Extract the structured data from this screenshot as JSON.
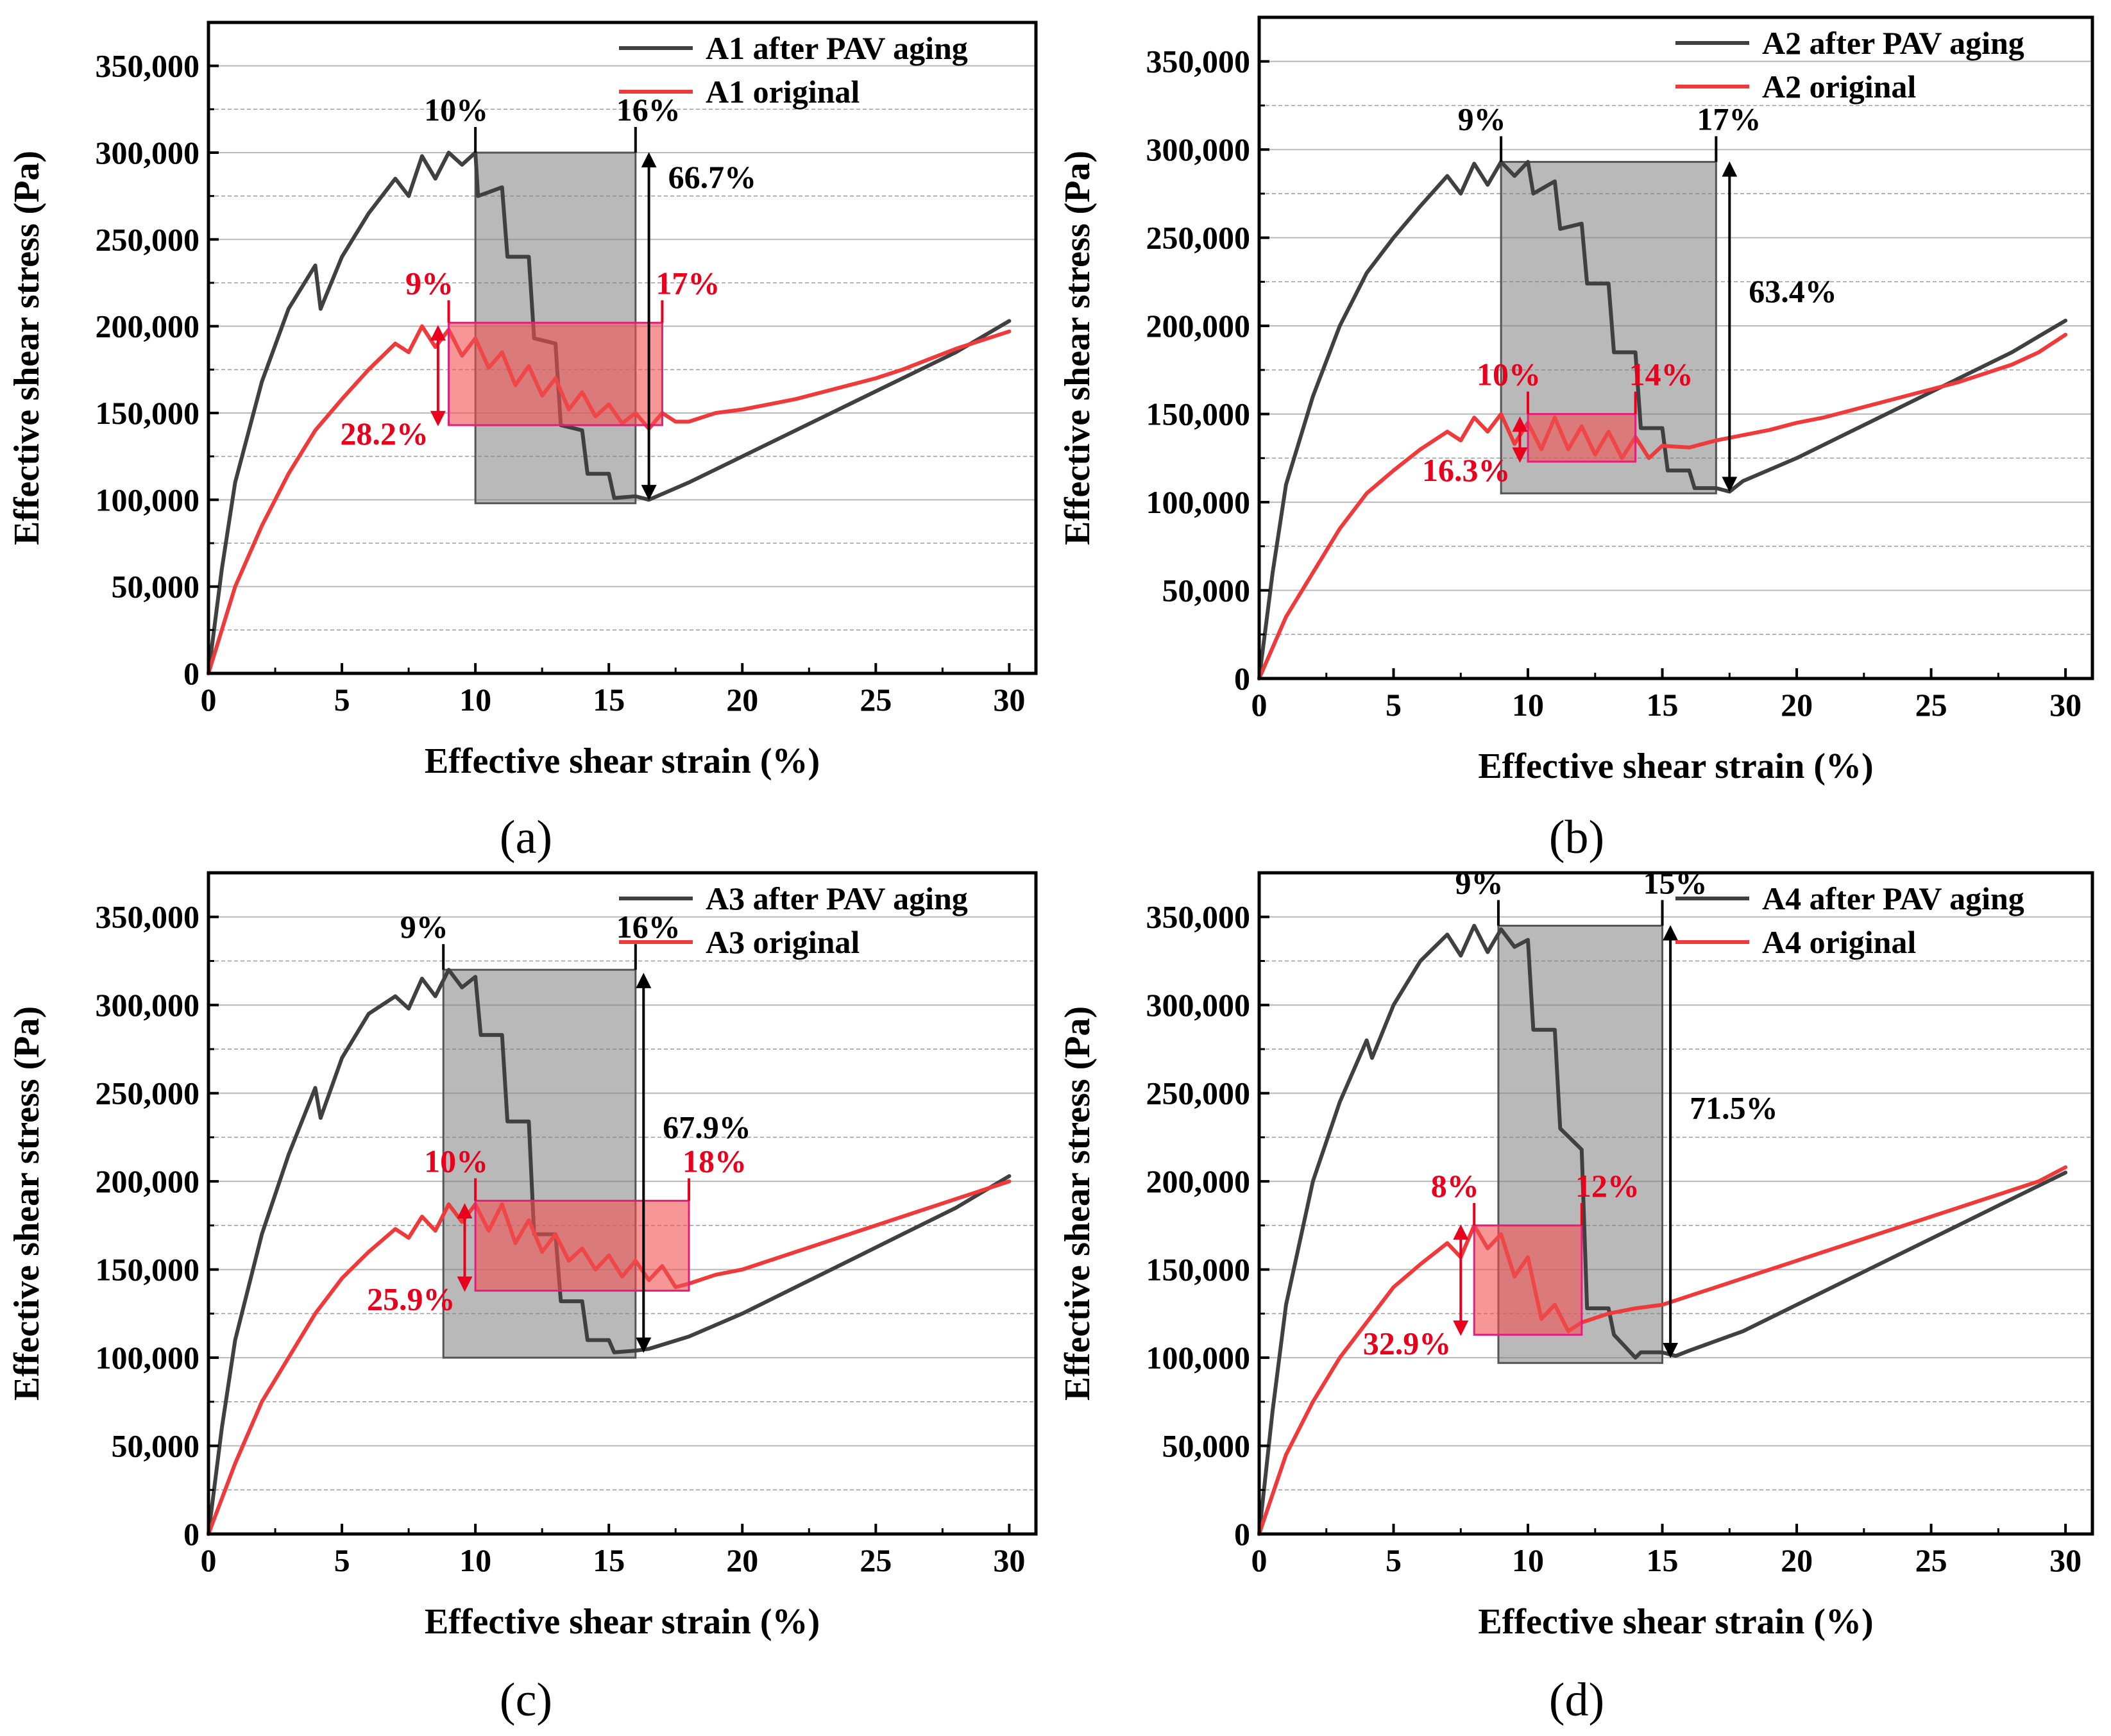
{
  "colors": {
    "aged": "#404040",
    "original": "#ee3a3a",
    "annot_red": "#e8001c",
    "annot_black": "#000000",
    "gray_box": "#7f7f7f",
    "red_box": "#f05050"
  },
  "chart_data": [
    {
      "type": "line",
      "panel_label": "(a)",
      "xlabel": "Effective shear strain (%)",
      "ylabel": "Effective shear stress (Pa)",
      "xlim": [
        0,
        31
      ],
      "ylim": [
        0,
        375000
      ],
      "x_ticks": [
        0,
        5,
        10,
        15,
        20,
        25,
        30
      ],
      "y_ticks": [
        0,
        50000,
        100000,
        150000,
        200000,
        250000,
        300000,
        350000
      ],
      "x_tick_labels": [
        "0",
        "5",
        "10",
        "15",
        "20",
        "25",
        "30"
      ],
      "y_tick_labels": [
        "0",
        "50,000",
        "100,000",
        "150,000",
        "200,000",
        "250,000",
        "300,000",
        "350,000"
      ],
      "legend": [
        "A1 after PAV aging",
        "A1 original"
      ],
      "series": [
        {
          "name": "A1 after PAV aging",
          "x": [
            0,
            0.5,
            1,
            2,
            3,
            4,
            4.2,
            5,
            6,
            7,
            7.5,
            8,
            8.5,
            9,
            9.5,
            10,
            10.1,
            11,
            11.2,
            12,
            12.2,
            13,
            13.2,
            14,
            14.2,
            15,
            15.2,
            16,
            16.5,
            18,
            20,
            22,
            24,
            26,
            28,
            30
          ],
          "y": [
            0,
            60000,
            110000,
            168000,
            210000,
            235000,
            210000,
            240000,
            265000,
            285000,
            275000,
            298000,
            285000,
            300000,
            293000,
            300000,
            275000,
            280000,
            240000,
            240000,
            193000,
            190000,
            143000,
            140000,
            115000,
            115000,
            101000,
            102000,
            100000,
            110000,
            125000,
            140000,
            155000,
            170000,
            185000,
            203000
          ]
        },
        {
          "name": "A1 original",
          "x": [
            0,
            1,
            2,
            3,
            4,
            5,
            6,
            7,
            7.5,
            8,
            8.5,
            9,
            9.5,
            10,
            10.5,
            11,
            11.5,
            12,
            12.5,
            13,
            13.5,
            14,
            14.5,
            15,
            15.5,
            16,
            16.5,
            17,
            17.5,
            18,
            19,
            20,
            21,
            22,
            23,
            24,
            25,
            26,
            27,
            28,
            29,
            30
          ],
          "y": [
            0,
            50000,
            85000,
            115000,
            140000,
            158000,
            175000,
            190000,
            185000,
            200000,
            188000,
            198000,
            183000,
            193000,
            176000,
            185000,
            166000,
            177000,
            160000,
            170000,
            152000,
            162000,
            148000,
            155000,
            144000,
            150000,
            141000,
            150000,
            145000,
            145000,
            150000,
            152000,
            155000,
            158000,
            162000,
            166000,
            170000,
            175000,
            181000,
            187000,
            192000,
            197000
          ]
        }
      ],
      "gray_box": {
        "x0": 10,
        "x1": 16,
        "y0": 98000,
        "y1": 300000
      },
      "red_box": {
        "x0": 9,
        "x1": 17,
        "y0": 143000,
        "y1": 202000
      },
      "black_arrow": {
        "x": 16.5,
        "y0": 100000,
        "y1": 300000
      },
      "red_arrow": {
        "x": 8.6,
        "y0": 143000,
        "y1": 200000
      },
      "black_labels": {
        "left": "10%",
        "right": "16%",
        "pct": "66.7%"
      },
      "red_labels": {
        "left": "9%",
        "right": "17%",
        "pct": "28.2%"
      }
    },
    {
      "type": "line",
      "panel_label": "(b)",
      "xlabel": "Effective shear strain (%)",
      "ylabel": "Effective shear stress (Pa)",
      "xlim": [
        0,
        31
      ],
      "ylim": [
        0,
        375000
      ],
      "x_ticks": [
        0,
        5,
        10,
        15,
        20,
        25,
        30
      ],
      "y_ticks": [
        0,
        50000,
        100000,
        150000,
        200000,
        250000,
        300000,
        350000
      ],
      "x_tick_labels": [
        "0",
        "5",
        "10",
        "15",
        "20",
        "25",
        "30"
      ],
      "y_tick_labels": [
        "0",
        "50,000",
        "100,000",
        "150,000",
        "200,000",
        "250,000",
        "300,000",
        "350,000"
      ],
      "legend": [
        "A2 after PAV aging",
        "A2 original"
      ],
      "series": [
        {
          "name": "A2 after PAV aging",
          "x": [
            0,
            0.5,
            1,
            2,
            3,
            3.5,
            4,
            5,
            6,
            7,
            7.5,
            8,
            8.5,
            9,
            9.5,
            10,
            10.2,
            11,
            11.2,
            12,
            12.2,
            13,
            13.2,
            14,
            14.2,
            15,
            15.2,
            16,
            16.2,
            17,
            17.5,
            18,
            20,
            22,
            24,
            26,
            28,
            30
          ],
          "y": [
            0,
            60000,
            110000,
            160000,
            200000,
            215000,
            230000,
            250000,
            268000,
            285000,
            275000,
            292000,
            280000,
            293000,
            285000,
            293000,
            275000,
            282000,
            255000,
            258000,
            224000,
            224000,
            185000,
            185000,
            142000,
            142000,
            118000,
            118000,
            108000,
            108000,
            106000,
            112000,
            125000,
            140000,
            155000,
            170000,
            185000,
            203000
          ]
        },
        {
          "name": "A2 original",
          "x": [
            0,
            1,
            2,
            3,
            4,
            5,
            6,
            7,
            7.5,
            8,
            8.5,
            9,
            9.5,
            10,
            10.5,
            11,
            11.5,
            12,
            12.5,
            13,
            13.5,
            14,
            14.5,
            15,
            16,
            17,
            18,
            19,
            20,
            21,
            22,
            23,
            24,
            25,
            26,
            27,
            28,
            29,
            30
          ],
          "y": [
            0,
            35000,
            60000,
            85000,
            105000,
            118000,
            130000,
            140000,
            135000,
            148000,
            140000,
            150000,
            133000,
            145000,
            130000,
            148000,
            130000,
            143000,
            127000,
            140000,
            125000,
            137000,
            125000,
            132000,
            131000,
            135000,
            138000,
            141000,
            145000,
            148000,
            152000,
            156000,
            160000,
            164000,
            168000,
            173000,
            178000,
            185000,
            195000
          ]
        }
      ],
      "gray_box": {
        "x0": 9,
        "x1": 17,
        "y0": 105000,
        "y1": 293000
      },
      "red_box": {
        "x0": 10,
        "x1": 14,
        "y0": 123000,
        "y1": 150000
      },
      "black_arrow": {
        "x": 17.5,
        "y0": 106000,
        "y1": 293000
      },
      "red_arrow": {
        "x": 9.7,
        "y0": 123000,
        "y1": 148000
      },
      "black_labels": {
        "left": "9%",
        "right": "17%",
        "pct": "63.4%"
      },
      "red_labels": {
        "left": "10%",
        "right": "14%",
        "pct": "16.3%"
      }
    },
    {
      "type": "line",
      "panel_label": "(c)",
      "xlabel": "Effective shear strain (%)",
      "ylabel": "Effective shear stress (Pa)",
      "xlim": [
        0,
        31
      ],
      "ylim": [
        0,
        375000
      ],
      "x_ticks": [
        0,
        5,
        10,
        15,
        20,
        25,
        30
      ],
      "y_ticks": [
        0,
        50000,
        100000,
        150000,
        200000,
        250000,
        300000,
        350000
      ],
      "x_tick_labels": [
        "0",
        "5",
        "10",
        "15",
        "20",
        "25",
        "30"
      ],
      "y_tick_labels": [
        "0",
        "50,000",
        "100,000",
        "150,000",
        "200,000",
        "250,000",
        "300,000",
        "350,000"
      ],
      "legend": [
        "A3 after PAV aging",
        "A3 original"
      ],
      "series": [
        {
          "name": "A3 after PAV aging",
          "x": [
            0,
            0.5,
            1,
            2,
            3,
            4,
            4.2,
            5,
            6,
            7,
            7.5,
            8,
            8.5,
            9,
            9.5,
            10,
            10.2,
            11,
            11.2,
            12,
            12.2,
            13,
            13.2,
            14,
            14.2,
            15,
            15.2,
            16,
            16.5,
            18,
            20,
            22,
            24,
            26,
            28,
            30
          ],
          "y": [
            0,
            60000,
            110000,
            170000,
            215000,
            253000,
            236000,
            270000,
            295000,
            305000,
            298000,
            315000,
            305000,
            320000,
            310000,
            316000,
            283000,
            283000,
            234000,
            234000,
            170000,
            170000,
            132000,
            132000,
            110000,
            110000,
            103000,
            104000,
            105000,
            112000,
            125000,
            140000,
            155000,
            170000,
            185000,
            203000
          ]
        },
        {
          "name": "A3 original",
          "x": [
            0,
            1,
            2,
            3,
            4,
            5,
            6,
            7,
            7.5,
            8,
            8.5,
            9,
            9.5,
            10,
            10.5,
            11,
            11.5,
            12,
            12.5,
            13,
            13.5,
            14,
            14.5,
            15,
            15.5,
            16,
            16.5,
            17,
            17.5,
            18,
            19,
            20,
            21,
            22,
            23,
            24,
            25,
            26,
            27,
            28,
            29,
            30
          ],
          "y": [
            0,
            40000,
            75000,
            100000,
            125000,
            145000,
            160000,
            173000,
            168000,
            180000,
            172000,
            187000,
            177000,
            187000,
            172000,
            187000,
            165000,
            178000,
            160000,
            170000,
            155000,
            162000,
            150000,
            158000,
            146000,
            155000,
            144000,
            152000,
            140000,
            142000,
            147000,
            150000,
            155000,
            160000,
            165000,
            170000,
            175000,
            180000,
            185000,
            190000,
            195000,
            200000
          ]
        }
      ],
      "gray_box": {
        "x0": 8.8,
        "x1": 16,
        "y0": 100000,
        "y1": 320000
      },
      "red_box": {
        "x0": 10,
        "x1": 18,
        "y0": 138000,
        "y1": 189000
      },
      "black_arrow": {
        "x": 16.3,
        "y0": 103000,
        "y1": 318000
      },
      "red_arrow": {
        "x": 9.6,
        "y0": 138000,
        "y1": 187000
      },
      "black_labels": {
        "left": "9%",
        "right": "16%",
        "pct": "67.9%"
      },
      "red_labels": {
        "left": "10%",
        "right": "18%",
        "pct": "25.9%"
      }
    },
    {
      "type": "line",
      "panel_label": "(d)",
      "xlabel": "Effective shear strain (%)",
      "ylabel": "Effective shear stress (Pa)",
      "xlim": [
        0,
        31
      ],
      "ylim": [
        0,
        375000
      ],
      "x_ticks": [
        0,
        5,
        10,
        15,
        20,
        25,
        30
      ],
      "y_ticks": [
        0,
        50000,
        100000,
        150000,
        200000,
        250000,
        300000,
        350000
      ],
      "x_tick_labels": [
        "0",
        "5",
        "10",
        "15",
        "20",
        "25",
        "30"
      ],
      "y_tick_labels": [
        "0",
        "50,000",
        "100,000",
        "150,000",
        "200,000",
        "250,000",
        "300,000",
        "350,000"
      ],
      "legend": [
        "A4 after PAV aging",
        "A4 original"
      ],
      "series": [
        {
          "name": "A4 after PAV aging",
          "x": [
            0,
            0.5,
            1,
            2,
            3,
            4,
            4.2,
            5,
            6,
            7,
            7.5,
            8,
            8.5,
            9,
            9.5,
            10,
            10.2,
            11,
            11.2,
            12,
            12.2,
            13,
            13.2,
            14,
            14.2,
            15,
            15.5,
            16,
            18,
            20,
            22,
            24,
            26,
            28,
            30
          ],
          "y": [
            0,
            70000,
            130000,
            200000,
            245000,
            280000,
            270000,
            300000,
            325000,
            340000,
            328000,
            345000,
            330000,
            343000,
            333000,
            337000,
            286000,
            286000,
            230000,
            218000,
            128000,
            128000,
            113000,
            100000,
            103000,
            103000,
            101000,
            104000,
            115000,
            130000,
            145000,
            160000,
            175000,
            190000,
            205000
          ]
        },
        {
          "name": "A4 original",
          "x": [
            0,
            1,
            2,
            3,
            4,
            5,
            6,
            7,
            7.5,
            8,
            8.5,
            9,
            9.5,
            10,
            10.5,
            11,
            11.5,
            12,
            13,
            14,
            15,
            16,
            17,
            18,
            19,
            20,
            21,
            22,
            23,
            24,
            25,
            26,
            27,
            28,
            29,
            30
          ],
          "y": [
            0,
            45000,
            75000,
            100000,
            120000,
            140000,
            153000,
            165000,
            157000,
            175000,
            162000,
            170000,
            146000,
            157000,
            122000,
            130000,
            115000,
            120000,
            125000,
            128000,
            130000,
            135000,
            140000,
            145000,
            150000,
            155000,
            160000,
            165000,
            170000,
            175000,
            180000,
            185000,
            190000,
            195000,
            200000,
            208000
          ]
        }
      ],
      "gray_box": {
        "x0": 8.9,
        "x1": 15,
        "y0": 97000,
        "y1": 345000
      },
      "red_box": {
        "x0": 8,
        "x1": 12,
        "y0": 113000,
        "y1": 175000
      },
      "black_arrow": {
        "x": 15.3,
        "y0": 100000,
        "y1": 345000
      },
      "red_arrow": {
        "x": 7.5,
        "y0": 113000,
        "y1": 175000
      },
      "black_labels": {
        "left": "9%",
        "right": "15%",
        "pct": "71.5%"
      },
      "red_labels": {
        "left": "8%",
        "right": "12%",
        "pct": "32.9%"
      }
    }
  ]
}
